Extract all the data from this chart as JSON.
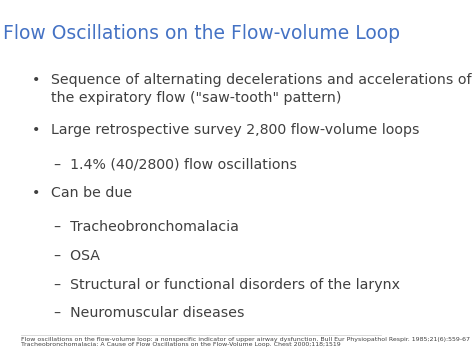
{
  "title": "Flow Oscillations on the Flow-volume Loop",
  "title_color": "#4472C4",
  "background_color": "#FFFFFF",
  "bullet_color": "#404040",
  "bullet_points": [
    {
      "type": "bullet",
      "text": "Sequence of alternating decelerations and accelerations of\nthe expiratory flow (\"saw-tooth\" pattern)",
      "indent": 0
    },
    {
      "type": "bullet",
      "text": "Large retrospective survey 2,800 flow-volume loops",
      "indent": 0
    },
    {
      "type": "dash",
      "text": "–  1.4% (40/2800) flow oscillations",
      "indent": 1
    },
    {
      "type": "bullet",
      "text": "Can be due",
      "indent": 0
    },
    {
      "type": "dash",
      "text": "–  Tracheobronchomalacia",
      "indent": 1
    },
    {
      "type": "dash",
      "text": "–  OSA",
      "indent": 1
    },
    {
      "type": "dash",
      "text": "–  Structural or functional disorders of the larynx",
      "indent": 1
    },
    {
      "type": "dash",
      "text": "–  Neuromuscular diseases",
      "indent": 1
    }
  ],
  "footnote_line1": "Flow oscillations on the flow-volume loop: a nonspecific indicator of upper airway dysfunction. Bull Eur Physiopathol Respir. 1985;21(6):559-67",
  "footnote_line2": "Tracheobronchomalacia: A Cause of Flow Oscillations on the Flow-Volume Loop. Chest 2000;118;1519"
}
